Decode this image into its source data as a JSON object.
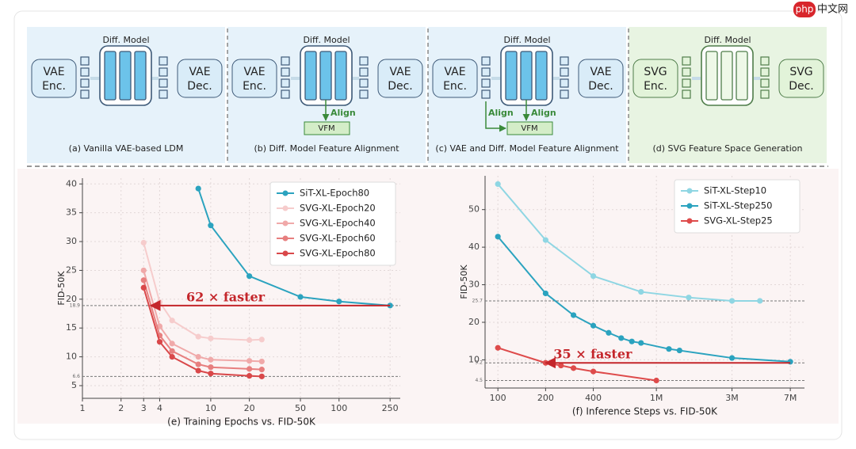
{
  "watermark": {
    "logo": "php",
    "text": "中文网"
  },
  "diagram": {
    "panels": [
      {
        "color": "#e6f2fa",
        "encoder": [
          "VAE",
          "Enc."
        ],
        "model": "Diff. Model",
        "decoder": [
          "VAE",
          "Dec."
        ],
        "caption": "(a) Vanilla VAE-based LDM"
      },
      {
        "color": "#e6f2fa",
        "encoder": [
          "VAE",
          "Enc."
        ],
        "model": "Diff. Model",
        "decoder": [
          "VAE",
          "Dec."
        ],
        "align": [
          "Align"
        ],
        "vfm": "VFM",
        "caption": "(b) Diff. Model Feature Alignment"
      },
      {
        "color": "#e6f2fa",
        "encoder": [
          "VAE",
          "Enc."
        ],
        "model": "Diff. Model",
        "decoder": [
          "VAE",
          "Dec."
        ],
        "align": [
          "Align",
          "Align"
        ],
        "vfm": "VFM",
        "caption": "(c) VAE and Diff. Model Feature Alignment"
      },
      {
        "color": "#e8f4e2",
        "encoder": [
          "SVG",
          "Enc."
        ],
        "model": "Diff. Model",
        "decoder": [
          "SVG",
          "Dec."
        ],
        "caption": "(d) SVG Feature Space Generation"
      }
    ]
  },
  "chart_data": [
    {
      "type": "line",
      "caption": "(e) Training Epochs vs. FID-50K",
      "ylabel": "FID-50K",
      "xscale": "log",
      "xlim": [
        1,
        300
      ],
      "ylim": [
        2.8,
        41
      ],
      "xticks": [
        1,
        2,
        3,
        4,
        10,
        20,
        50,
        100,
        250
      ],
      "yticks": [
        5,
        10,
        15,
        20,
        25,
        30,
        35,
        40
      ],
      "grid": true,
      "legend": "upper right",
      "series": [
        {
          "name": "SiT-XL-Epoch80",
          "color": "#2ba3bf",
          "x": [
            8,
            10,
            20,
            50,
            100,
            250
          ],
          "values": [
            39.2,
            32.8,
            24,
            20.4,
            19.6,
            18.9
          ]
        },
        {
          "name": "SVG-XL-Epoch20",
          "color": "#f6cccc",
          "x": [
            3,
            4,
            5,
            8,
            10,
            20,
            25
          ],
          "values": [
            29.8,
            19.5,
            16.3,
            13.5,
            13.2,
            12.9,
            13.0
          ]
        },
        {
          "name": "SVG-XL-Epoch40",
          "color": "#f0a9a9",
          "x": [
            3,
            4,
            5,
            8,
            10,
            20,
            25
          ],
          "values": [
            25.0,
            15.3,
            12.3,
            10.0,
            9.5,
            9.3,
            9.2
          ]
        },
        {
          "name": "SVG-XL-Epoch60",
          "color": "#e77f7f",
          "x": [
            3,
            4,
            5,
            8,
            10,
            20,
            25
          ],
          "values": [
            23.3,
            13.7,
            11.0,
            8.7,
            8.2,
            7.9,
            7.8
          ]
        },
        {
          "name": "SVG-XL-Epoch80",
          "color": "#d9484a",
          "x": [
            3,
            4,
            5,
            8,
            10,
            20,
            25
          ],
          "values": [
            22.0,
            12.6,
            10.0,
            7.6,
            7.1,
            6.7,
            6.6
          ]
        }
      ],
      "reference_lines": [
        {
          "value": 18.9,
          "label": "18.9"
        },
        {
          "value": 6.6,
          "label": "6.6"
        }
      ],
      "annotation": {
        "text": "62 × faster",
        "color": "#c4262b",
        "x_from": 250,
        "x_to": 3.4,
        "y": 18.9
      }
    },
    {
      "type": "line",
      "caption": "(f) Inference Steps vs. FID-50K",
      "ylabel": "FID-50K",
      "xscale": "log",
      "xlim": [
        83,
        8600
      ],
      "ylim": [
        2.5,
        59
      ],
      "xticks": [
        100,
        200,
        400,
        {
          "value": 1000,
          "label": "1M"
        },
        {
          "value": 3000,
          "label": "3M"
        },
        {
          "value": 7000,
          "label": "7M"
        }
      ],
      "yticks": [
        10,
        20,
        30,
        40,
        50
      ],
      "grid": true,
      "legend": "upper right",
      "series": [
        {
          "name": "SiT-XL-Step10",
          "color": "#8fd6e3",
          "x": [
            100,
            200,
            400,
            800,
            1600,
            3000,
            4500
          ],
          "values": [
            56.8,
            41.9,
            32.3,
            28.1,
            26.6,
            25.7,
            25.7
          ]
        },
        {
          "name": "SiT-XL-Step250",
          "color": "#2ba3bf",
          "x": [
            100,
            200,
            300,
            400,
            500,
            600,
            700,
            800,
            1200,
            1400,
            3000,
            7000
          ],
          "values": [
            42.8,
            27.7,
            21.9,
            19.1,
            17.2,
            15.8,
            14.9,
            14.5,
            12.9,
            12.5,
            10.5,
            9.5
          ]
        },
        {
          "name": "SVG-XL-Step25",
          "color": "#de4b4b",
          "x": [
            100,
            200,
            250,
            300,
            400,
            1000
          ],
          "values": [
            13.2,
            9.2,
            8.5,
            7.8,
            6.9,
            4.5
          ]
        }
      ],
      "reference_lines": [
        {
          "value": 25.7,
          "label": "25.7"
        },
        {
          "value": 9.2,
          "label": "9.2"
        },
        {
          "value": 4.5,
          "label": "4.5"
        }
      ],
      "annotation": {
        "text": "35 × faster",
        "color": "#c4262b",
        "x_from": 7000,
        "x_to": 200,
        "y": 9.2
      }
    }
  ]
}
